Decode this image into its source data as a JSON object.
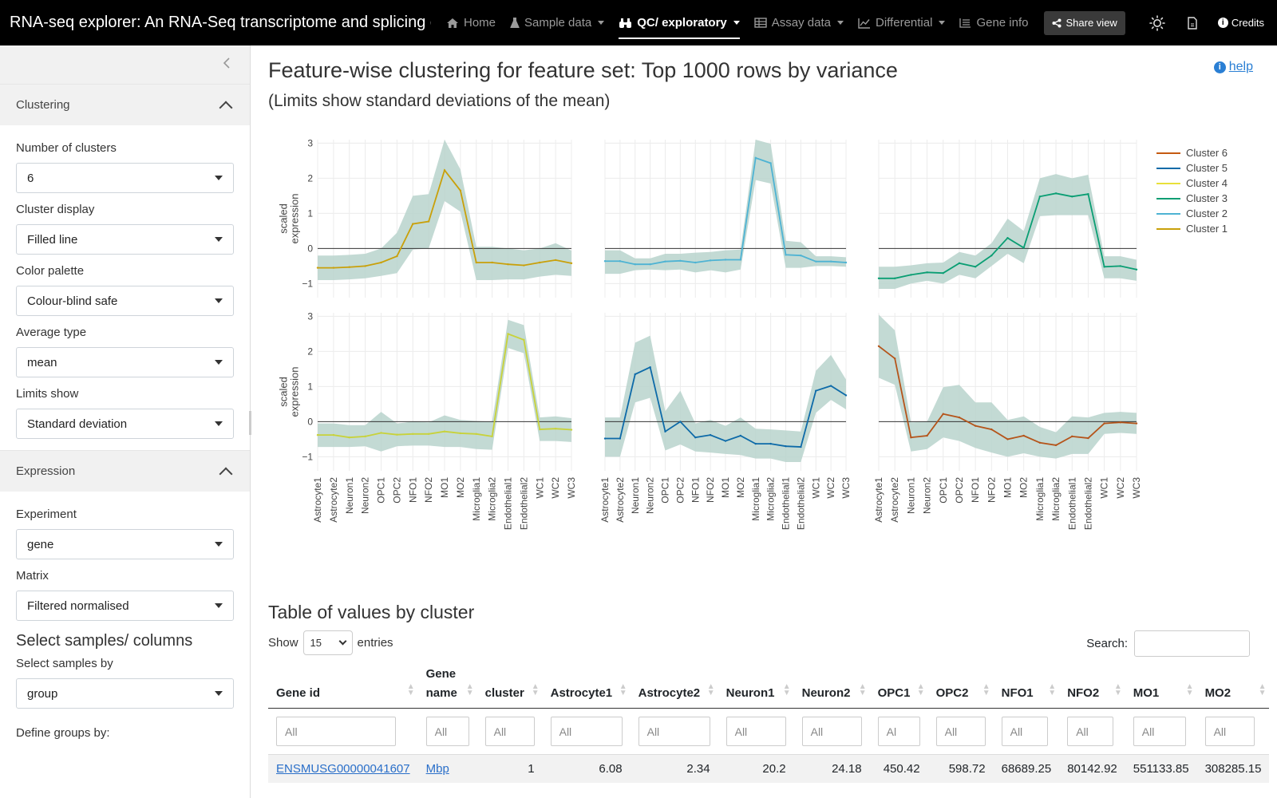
{
  "navbar": {
    "brand": "RNA-seq explorer: An RNA-Seq transcriptome and splicing d...",
    "items": [
      {
        "label": "Home",
        "icon": "home-icon",
        "caret": false,
        "active": false
      },
      {
        "label": "Sample data",
        "icon": "flask-icon",
        "caret": true,
        "active": false
      },
      {
        "label": "QC/ exploratory",
        "icon": "binoculars-icon",
        "caret": true,
        "active": true
      },
      {
        "label": "Assay data",
        "icon": "table-icon",
        "caret": true,
        "active": false
      },
      {
        "label": "Differential",
        "icon": "line-chart-icon",
        "caret": true,
        "active": false
      },
      {
        "label": "Gene info",
        "icon": "list-icon",
        "caret": false,
        "active": false
      }
    ],
    "share_label": "Share view",
    "credits_label": "Credits"
  },
  "sidebar": {
    "clustering": {
      "header": "Clustering",
      "fields": [
        {
          "label": "Number of clusters",
          "value": "6"
        },
        {
          "label": "Cluster display",
          "value": "Filled line"
        },
        {
          "label": "Color palette",
          "value": "Colour-blind safe"
        },
        {
          "label": "Average type",
          "value": "mean"
        },
        {
          "label": "Limits show",
          "value": "Standard deviation"
        }
      ]
    },
    "expression": {
      "header": "Expression",
      "fields": [
        {
          "label": "Experiment",
          "value": "gene"
        },
        {
          "label": "Matrix",
          "value": "Filtered normalised"
        }
      ],
      "samples_heading": "Select samples/ columns",
      "samples_by_label": "Select samples by",
      "samples_by_value": "group",
      "define_groups_label": "Define groups by:"
    }
  },
  "main": {
    "title": "Feature-wise clustering for feature set: Top 1000 rows by variance",
    "subtitle": "(Limits show standard deviations of the mean)",
    "help_label": "help"
  },
  "chart_data": {
    "type": "line",
    "layout": "3x2 small multiples, one panel per cluster",
    "ylabel": "scaled expression",
    "ylim": [
      -1.4,
      3.1
    ],
    "yticks": [
      -1,
      0,
      1,
      2,
      3
    ],
    "grid": true,
    "legend_placement": "top-right",
    "categories": [
      "Astrocyte1",
      "Astrocyte2",
      "Neuron1",
      "Neuron2",
      "OPC1",
      "OPC2",
      "NFO1",
      "NFO2",
      "MO1",
      "MO2",
      "Microglia1",
      "Microglia2",
      "Endothelial1",
      "Endothelial2",
      "WC1",
      "WC2",
      "WC3"
    ],
    "legend": [
      {
        "name": "Cluster 6",
        "color": "#c55a11"
      },
      {
        "name": "Cluster 5",
        "color": "#0d6aa8"
      },
      {
        "name": "Cluster 4",
        "color": "#e8e03a"
      },
      {
        "name": "Cluster 3",
        "color": "#0a9e73"
      },
      {
        "name": "Cluster 2",
        "color": "#4eb3d3"
      },
      {
        "name": "Cluster 1",
        "color": "#c9a00a"
      }
    ],
    "band_color": "#b8d4cc",
    "panels": [
      {
        "name": "Cluster 1",
        "color": "#c9a00a",
        "mean": [
          -0.55,
          -0.55,
          -0.53,
          -0.5,
          -0.4,
          -0.22,
          0.7,
          0.77,
          2.23,
          1.65,
          -0.4,
          -0.4,
          -0.45,
          -0.48,
          -0.4,
          -0.33,
          -0.42
        ],
        "lower": [
          -0.9,
          -0.9,
          -0.88,
          -0.85,
          -0.78,
          -0.7,
          -0.03,
          0.0,
          1.35,
          1.05,
          -0.9,
          -0.9,
          -0.88,
          -0.88,
          -0.8,
          -0.75,
          -0.78
        ],
        "upper": [
          -0.2,
          -0.2,
          -0.18,
          -0.15,
          0.0,
          0.45,
          1.5,
          1.55,
          3.1,
          2.25,
          0.05,
          0.05,
          0.0,
          -0.05,
          0.0,
          0.15,
          -0.06
        ]
      },
      {
        "name": "Cluster 2",
        "color": "#4eb3d3",
        "mean": [
          -0.36,
          -0.36,
          -0.45,
          -0.45,
          -0.37,
          -0.35,
          -0.4,
          -0.34,
          -0.32,
          -0.32,
          2.58,
          2.43,
          -0.18,
          -0.2,
          -0.37,
          -0.37,
          -0.4
        ],
        "lower": [
          -0.72,
          -0.72,
          -0.62,
          -0.6,
          -0.62,
          -0.6,
          -0.68,
          -0.62,
          -0.68,
          -0.6,
          1.95,
          1.85,
          -0.55,
          -0.55,
          -0.5,
          -0.5,
          -0.52
        ],
        "upper": [
          -0.05,
          -0.05,
          -0.28,
          -0.28,
          -0.15,
          -0.15,
          -0.12,
          -0.1,
          -0.05,
          -0.03,
          3.1,
          2.98,
          0.22,
          0.18,
          -0.22,
          -0.22,
          -0.25
        ]
      },
      {
        "name": "Cluster 3",
        "color": "#0a9e73",
        "mean": [
          -0.85,
          -0.85,
          -0.75,
          -0.68,
          -0.7,
          -0.42,
          -0.52,
          -0.2,
          0.3,
          0.02,
          1.48,
          1.57,
          1.48,
          1.55,
          -0.52,
          -0.5,
          -0.6
        ],
        "lower": [
          -1.15,
          -1.15,
          -1.0,
          -0.92,
          -1.0,
          -0.75,
          -0.85,
          -0.5,
          -0.15,
          -0.42,
          0.92,
          0.95,
          0.95,
          0.95,
          -0.85,
          -0.85,
          -0.92
        ],
        "upper": [
          -0.52,
          -0.52,
          -0.48,
          -0.42,
          -0.4,
          -0.1,
          -0.2,
          0.15,
          0.85,
          0.5,
          2.0,
          2.12,
          2.0,
          2.1,
          -0.22,
          -0.22,
          -0.32
        ]
      },
      {
        "name": "Cluster 4",
        "color": "#c8d23a",
        "mean": [
          -0.38,
          -0.38,
          -0.45,
          -0.42,
          -0.32,
          -0.37,
          -0.35,
          -0.35,
          -0.28,
          -0.33,
          -0.35,
          -0.42,
          2.5,
          2.33,
          -0.22,
          -0.2,
          -0.23
        ],
        "lower": [
          -0.72,
          -0.72,
          -0.72,
          -0.7,
          -0.85,
          -0.7,
          -0.68,
          -0.68,
          -0.72,
          -0.72,
          -0.78,
          -0.8,
          2.1,
          1.95,
          -0.55,
          -0.55,
          -0.58
        ],
        "upper": [
          -0.05,
          -0.05,
          -0.1,
          -0.1,
          0.28,
          -0.05,
          0.0,
          -0.02,
          0.18,
          0.05,
          0.02,
          0.0,
          2.9,
          2.75,
          0.12,
          0.15,
          0.1
        ]
      },
      {
        "name": "Cluster 5",
        "color": "#0d6aa8",
        "mean": [
          -0.48,
          -0.48,
          1.35,
          1.55,
          -0.28,
          0.0,
          -0.45,
          -0.38,
          -0.55,
          -0.4,
          -0.63,
          -0.63,
          -0.7,
          -0.72,
          0.88,
          1.02,
          0.75
        ],
        "lower": [
          -1.0,
          -1.0,
          0.55,
          0.68,
          -0.82,
          -0.65,
          -0.85,
          -0.88,
          -0.92,
          -0.95,
          -1.05,
          -1.05,
          -1.15,
          -1.15,
          0.25,
          0.62,
          0.35
        ],
        "upper": [
          0.12,
          0.12,
          2.25,
          2.45,
          0.3,
          0.88,
          -0.05,
          0.05,
          -0.12,
          0.12,
          -0.2,
          -0.22,
          -0.25,
          -0.28,
          1.45,
          1.9,
          1.2
        ]
      },
      {
        "name": "Cluster 6",
        "color": "#b5541a",
        "mean": [
          2.15,
          1.8,
          -0.45,
          -0.4,
          0.22,
          0.12,
          -0.12,
          -0.22,
          -0.5,
          -0.4,
          -0.6,
          -0.67,
          -0.42,
          -0.47,
          -0.05,
          -0.02,
          -0.05
        ],
        "lower": [
          1.25,
          1.05,
          -0.85,
          -0.78,
          -0.45,
          -0.55,
          -0.75,
          -0.88,
          -1.0,
          -0.9,
          -1.0,
          -1.05,
          -0.92,
          -0.92,
          -0.35,
          -0.32,
          -0.35
        ],
        "upper": [
          3.05,
          2.6,
          -0.02,
          0.0,
          0.98,
          1.05,
          0.55,
          0.55,
          0.05,
          0.15,
          -0.15,
          -0.3,
          0.15,
          0.12,
          0.25,
          0.28,
          0.25
        ]
      }
    ]
  },
  "table": {
    "title": "Table of values by cluster",
    "show_label": "Show",
    "page_size": "15",
    "entries_label": "entries",
    "search_label": "Search:",
    "columns": [
      "Gene id",
      "Gene name",
      "cluster",
      "Astrocyte1",
      "Astrocyte2",
      "Neuron1",
      "Neuron2",
      "OPC1",
      "OPC2",
      "NFO1",
      "NFO2",
      "MO1",
      "MO2"
    ],
    "filters": [
      "All",
      "All",
      "All",
      "All",
      "All",
      "All",
      "All",
      "Al",
      "All",
      "All",
      "All",
      "All",
      "All"
    ],
    "rows": [
      [
        "ENSMUSG00000041607",
        "Mbp",
        "1",
        "6.08",
        "2.34",
        "20.2",
        "24.18",
        "450.42",
        "598.72",
        "68689.25",
        "80142.92",
        "551133.85",
        "308285.15"
      ]
    ]
  }
}
